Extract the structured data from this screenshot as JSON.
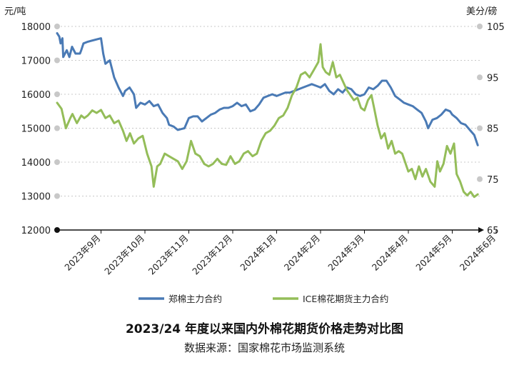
{
  "title": "2023/24 年度以来国内外棉花期货价格走势对比图",
  "source": "数据来源：国家棉花市场监测系统",
  "chart_data": {
    "type": "line",
    "left_unit": "元/吨",
    "right_unit": "美分/磅",
    "left_axis": {
      "min": 12000,
      "max": 18000,
      "ticks": [
        12000,
        13000,
        14000,
        15000,
        16000,
        17000,
        18000
      ]
    },
    "right_axis": {
      "min": 65,
      "max": 105,
      "ticks": [
        65,
        75,
        85,
        95,
        105
      ]
    },
    "x_categories": [
      "2023年9月",
      "2023年10月",
      "2023年11月",
      "2023年12月",
      "2024年1月",
      "2024年2月",
      "2024年3月",
      "2024年4月",
      "2024年5月",
      "2024年6月"
    ],
    "gridlines": true,
    "legend_position": "bottom",
    "series": [
      {
        "name": "郑棉主力合约",
        "axis": "left",
        "color": "#4a7ab5",
        "points": [
          [
            0.0,
            17800
          ],
          [
            0.05,
            17700
          ],
          [
            0.08,
            17500
          ],
          [
            0.12,
            17650
          ],
          [
            0.14,
            17100
          ],
          [
            0.22,
            17300
          ],
          [
            0.28,
            17100
          ],
          [
            0.34,
            17400
          ],
          [
            0.42,
            17200
          ],
          [
            0.52,
            17200
          ],
          [
            0.55,
            17300
          ],
          [
            0.6,
            17500
          ],
          [
            0.7,
            17550
          ],
          [
            1.0,
            17650
          ],
          [
            1.05,
            17200
          ],
          [
            1.1,
            16900
          ],
          [
            1.2,
            17000
          ],
          [
            1.3,
            16500
          ],
          [
            1.4,
            16200
          ],
          [
            1.5,
            15950
          ],
          [
            1.55,
            16100
          ],
          [
            1.65,
            16200
          ],
          [
            1.75,
            16000
          ],
          [
            1.8,
            15600
          ],
          [
            1.9,
            15750
          ],
          [
            2.0,
            15700
          ],
          [
            2.1,
            15800
          ],
          [
            2.2,
            15650
          ],
          [
            2.3,
            15700
          ],
          [
            2.4,
            15450
          ],
          [
            2.5,
            15300
          ],
          [
            2.55,
            15100
          ],
          [
            2.65,
            15050
          ],
          [
            2.75,
            14950
          ],
          [
            2.9,
            15000
          ],
          [
            3.0,
            15300
          ],
          [
            3.1,
            15350
          ],
          [
            3.2,
            15350
          ],
          [
            3.3,
            15200
          ],
          [
            3.4,
            15300
          ],
          [
            3.5,
            15400
          ],
          [
            3.6,
            15450
          ],
          [
            3.7,
            15550
          ],
          [
            3.8,
            15600
          ],
          [
            3.9,
            15600
          ],
          [
            4.0,
            15650
          ],
          [
            4.1,
            15750
          ],
          [
            4.2,
            15650
          ],
          [
            4.3,
            15700
          ],
          [
            4.4,
            15500
          ],
          [
            4.5,
            15550
          ],
          [
            4.6,
            15700
          ],
          [
            4.7,
            15900
          ],
          [
            4.8,
            15950
          ],
          [
            4.9,
            16000
          ],
          [
            5.0,
            15950
          ],
          [
            5.1,
            16000
          ],
          [
            5.2,
            16050
          ],
          [
            5.3,
            16050
          ],
          [
            5.4,
            16100
          ],
          [
            5.5,
            16150
          ],
          [
            5.6,
            16200
          ],
          [
            5.7,
            16250
          ],
          [
            5.8,
            16300
          ],
          [
            5.9,
            16250
          ],
          [
            6.0,
            16200
          ],
          [
            6.1,
            16300
          ],
          [
            6.2,
            16100
          ],
          [
            6.3,
            16000
          ],
          [
            6.4,
            16150
          ],
          [
            6.5,
            16050
          ],
          [
            6.6,
            16200
          ],
          [
            6.7,
            16150
          ],
          [
            6.8,
            16000
          ],
          [
            6.9,
            15950
          ],
          [
            7.0,
            16000
          ],
          [
            7.1,
            16200
          ],
          [
            7.2,
            16150
          ],
          [
            7.3,
            16250
          ],
          [
            7.4,
            16400
          ],
          [
            7.5,
            16400
          ],
          [
            7.6,
            16200
          ],
          [
            7.7,
            15950
          ],
          [
            7.8,
            15850
          ],
          [
            7.9,
            15750
          ],
          [
            8.0,
            15700
          ],
          [
            8.1,
            15650
          ],
          [
            8.2,
            15550
          ],
          [
            8.3,
            15450
          ],
          [
            8.4,
            15200
          ],
          [
            8.45,
            15000
          ],
          [
            8.55,
            15250
          ],
          [
            8.65,
            15300
          ],
          [
            8.75,
            15400
          ],
          [
            8.85,
            15550
          ],
          [
            8.95,
            15500
          ],
          [
            9.0,
            15400
          ],
          [
            9.1,
            15300
          ],
          [
            9.2,
            15150
          ],
          [
            9.3,
            15100
          ],
          [
            9.4,
            14950
          ],
          [
            9.5,
            14800
          ],
          [
            9.58,
            14500
          ]
        ]
      },
      {
        "name": "ICE棉花期货主力合约",
        "axis": "right",
        "color": "#94bd59",
        "points": [
          [
            0.0,
            90.0
          ],
          [
            0.1,
            88.8
          ],
          [
            0.2,
            85.0
          ],
          [
            0.3,
            87.0
          ],
          [
            0.35,
            87.8
          ],
          [
            0.45,
            86.0
          ],
          [
            0.55,
            87.5
          ],
          [
            0.62,
            87.0
          ],
          [
            0.7,
            87.5
          ],
          [
            0.8,
            88.5
          ],
          [
            0.9,
            88.0
          ],
          [
            1.0,
            88.6
          ],
          [
            1.1,
            87.0
          ],
          [
            1.2,
            87.5
          ],
          [
            1.3,
            86.0
          ],
          [
            1.4,
            86.5
          ],
          [
            1.5,
            84.5
          ],
          [
            1.58,
            82.5
          ],
          [
            1.66,
            84.0
          ],
          [
            1.75,
            82.0
          ],
          [
            1.85,
            83.0
          ],
          [
            1.95,
            83.5
          ],
          [
            2.05,
            80.0
          ],
          [
            2.15,
            77.5
          ],
          [
            2.2,
            73.5
          ],
          [
            2.28,
            77.5
          ],
          [
            2.35,
            78.0
          ],
          [
            2.45,
            80.0
          ],
          [
            2.55,
            79.5
          ],
          [
            2.65,
            79.0
          ],
          [
            2.75,
            78.5
          ],
          [
            2.85,
            77.0
          ],
          [
            2.95,
            78.5
          ],
          [
            3.05,
            82.5
          ],
          [
            3.15,
            80.0
          ],
          [
            3.25,
            79.5
          ],
          [
            3.35,
            78.0
          ],
          [
            3.45,
            77.5
          ],
          [
            3.55,
            78.0
          ],
          [
            3.65,
            79.0
          ],
          [
            3.75,
            78.0
          ],
          [
            3.85,
            77.8
          ],
          [
            3.95,
            79.5
          ],
          [
            4.05,
            78.0
          ],
          [
            4.15,
            78.5
          ],
          [
            4.25,
            80.0
          ],
          [
            4.35,
            80.5
          ],
          [
            4.45,
            79.5
          ],
          [
            4.55,
            80.0
          ],
          [
            4.65,
            82.5
          ],
          [
            4.75,
            84.0
          ],
          [
            4.85,
            84.5
          ],
          [
            4.95,
            85.5
          ],
          [
            5.05,
            87.0
          ],
          [
            5.15,
            87.5
          ],
          [
            5.25,
            89.0
          ],
          [
            5.35,
            91.5
          ],
          [
            5.45,
            93.0
          ],
          [
            5.55,
            95.5
          ],
          [
            5.65,
            96.0
          ],
          [
            5.75,
            95.0
          ],
          [
            5.85,
            96.5
          ],
          [
            5.95,
            98.0
          ],
          [
            6.0,
            101.5
          ],
          [
            6.05,
            97.0
          ],
          [
            6.12,
            96.0
          ],
          [
            6.2,
            95.5
          ],
          [
            6.28,
            98.0
          ],
          [
            6.36,
            95.0
          ],
          [
            6.44,
            95.5
          ],
          [
            6.52,
            94.0
          ],
          [
            6.6,
            92.5
          ],
          [
            6.68,
            91.5
          ],
          [
            6.76,
            90.5
          ],
          [
            6.84,
            91.0
          ],
          [
            6.92,
            89.0
          ],
          [
            7.0,
            88.5
          ],
          [
            7.08,
            90.5
          ],
          [
            7.16,
            91.5
          ],
          [
            7.22,
            89.0
          ],
          [
            7.3,
            85.5
          ],
          [
            7.38,
            83.0
          ],
          [
            7.46,
            84.0
          ],
          [
            7.54,
            81.0
          ],
          [
            7.62,
            82.5
          ],
          [
            7.7,
            80.0
          ],
          [
            7.78,
            80.5
          ],
          [
            7.86,
            80.0
          ],
          [
            7.94,
            78.0
          ],
          [
            8.0,
            76.5
          ],
          [
            8.08,
            77.0
          ],
          [
            8.16,
            75.0
          ],
          [
            8.24,
            77.5
          ],
          [
            8.32,
            75.5
          ],
          [
            8.4,
            77.0
          ],
          [
            8.5,
            74.5
          ],
          [
            8.6,
            73.5
          ],
          [
            8.66,
            78.5
          ],
          [
            8.72,
            76.5
          ],
          [
            8.8,
            78.0
          ],
          [
            8.88,
            81.5
          ],
          [
            8.96,
            80.0
          ],
          [
            9.04,
            82.0
          ],
          [
            9.1,
            76.0
          ],
          [
            9.18,
            74.5
          ],
          [
            9.26,
            72.5
          ],
          [
            9.34,
            71.8
          ],
          [
            9.42,
            72.5
          ],
          [
            9.5,
            71.5
          ],
          [
            9.58,
            72.0
          ]
        ]
      }
    ]
  }
}
